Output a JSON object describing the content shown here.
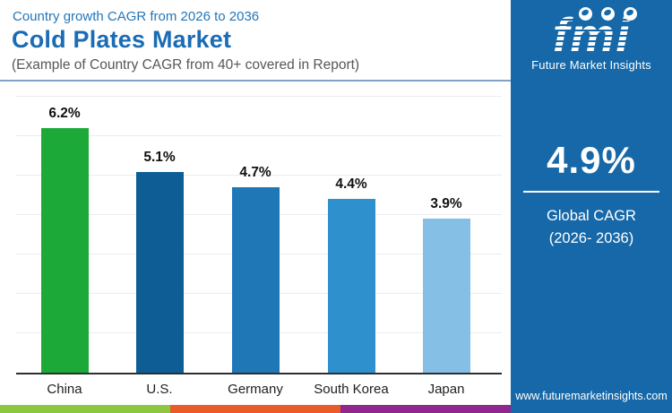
{
  "header": {
    "kicker": "Country growth CAGR from 2026 to 2036",
    "title": "Cold Plates Market",
    "subtitle": "(Example of Country CAGR from 40+ covered in Report)"
  },
  "chart_data": {
    "type": "bar",
    "title": "Cold Plates Market — Country growth CAGR from 2026 to 2036",
    "categories": [
      "China",
      "U.S.",
      "Germany",
      "South Korea",
      "Japan"
    ],
    "values": [
      6.2,
      5.1,
      4.7,
      4.4,
      3.9
    ],
    "value_labels": [
      "6.2%",
      "5.1%",
      "4.7%",
      "4.4%",
      "3.9%"
    ],
    "bar_colors": [
      "#1ca938",
      "#0e5e95",
      "#1f77b6",
      "#2f90ce",
      "#85bfe5"
    ],
    "xlabel": "",
    "ylabel": "",
    "ylim": [
      0,
      7.5
    ],
    "grid": "faint horizontal lines every 1%",
    "legend": "none",
    "value_label_position": "above bars",
    "axis_line_color": "#2e2e2e"
  },
  "sidebar": {
    "background_color": "#1668a8",
    "logo": {
      "text": "fmi",
      "tagline": "Future Market Insights",
      "icons": [
        "americas-globe-icon",
        "europe-globe-icon",
        "asia-globe-icon"
      ]
    },
    "stat": {
      "value": "4.9%",
      "label_line1": "Global CAGR",
      "label_line2": "(2026- 2036)"
    },
    "website": "www.futuremarketinsights.com"
  },
  "footer_strip": {
    "colors": [
      "#8dc63f",
      "#e95b2b",
      "#90278e"
    ]
  }
}
